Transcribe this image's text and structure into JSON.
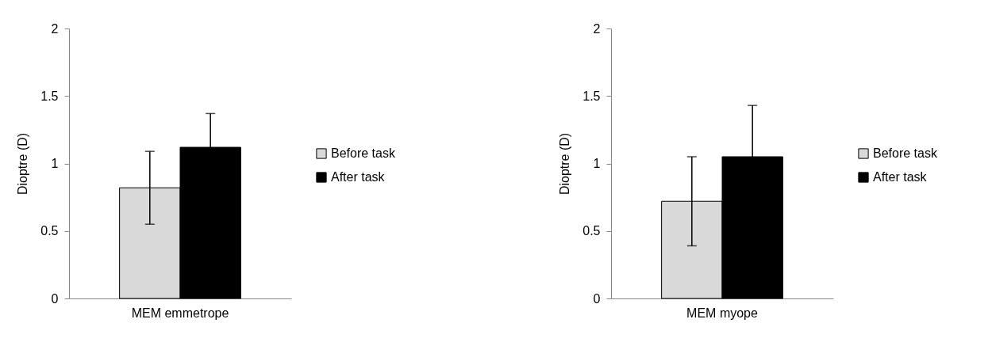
{
  "chart_data": [
    {
      "type": "bar",
      "categories": [
        "MEM emmetrope"
      ],
      "ylabel": "Dioptre (D)",
      "ylim": [
        0,
        2
      ],
      "yticks": [
        0,
        0.5,
        1,
        1.5,
        2
      ],
      "grid": false,
      "legend": "right",
      "series": [
        {
          "name": "Before task",
          "color": "#d9d9d9",
          "values": [
            0.82
          ],
          "errors": [
            0.27
          ]
        },
        {
          "name": "After task",
          "color": "#000000",
          "values": [
            1.12
          ],
          "errors": [
            0.25
          ]
        }
      ]
    },
    {
      "type": "bar",
      "categories": [
        "MEM myope"
      ],
      "ylabel": "Dioptre (D)",
      "ylim": [
        0,
        2
      ],
      "yticks": [
        0,
        0.5,
        1,
        1.5,
        2
      ],
      "grid": false,
      "legend": "right",
      "series": [
        {
          "name": "Before task",
          "color": "#d9d9d9",
          "values": [
            0.72
          ],
          "errors": [
            0.33
          ]
        },
        {
          "name": "After task",
          "color": "#000000",
          "values": [
            1.05
          ],
          "errors": [
            0.38
          ]
        }
      ]
    }
  ]
}
